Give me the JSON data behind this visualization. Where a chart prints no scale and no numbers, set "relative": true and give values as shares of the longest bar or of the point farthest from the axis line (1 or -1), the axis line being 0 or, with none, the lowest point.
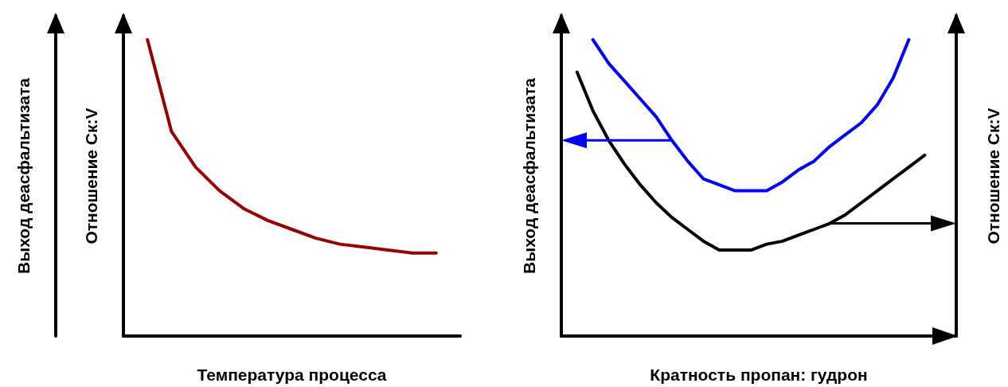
{
  "chart_data": [
    {
      "type": "line",
      "relative": true,
      "xlabel": "Температура процесса",
      "ylabel": "Отношение Ск:V",
      "y2label": "Выход деасфальтизата",
      "categories": [
        null,
        null,
        null,
        null,
        null,
        null,
        null,
        null,
        null,
        null,
        null,
        null,
        null,
        null,
        null
      ],
      "marker": "none",
      "series": [
        {
          "color": "#990000",
          "values": [
            null,
            1,
            0.69,
            0.57,
            0.49,
            0.43,
            0.39,
            0.36,
            0.33,
            0.31,
            0.3,
            0.29,
            0.28,
            0.28,
            null
          ]
        }
      ]
    },
    {
      "type": "line",
      "relative": true,
      "xlabel": "Кратность пропан: гудрон",
      "ylabel": "Выход деасфальтизата",
      "y2label": "Отношение Ск:V",
      "categories": [
        null,
        null,
        null,
        null,
        null,
        null,
        null,
        null,
        null,
        null,
        null,
        null,
        null,
        null,
        null,
        null,
        null,
        null,
        null,
        null,
        null,
        null,
        null,
        null,
        null,
        null
      ],
      "marker": "none",
      "series": [
        {
          "color": "#0000ff",
          "values": [
            null,
            null,
            1,
            0.92,
            0.86,
            0.8,
            0.74,
            0.66,
            0.59,
            0.53,
            0.51,
            0.49,
            0.49,
            0.49,
            0.52,
            0.56,
            0.59,
            0.64,
            0.68,
            0.72,
            0.78,
            0.87,
            1,
            null,
            null,
            null
          ]
        },
        {
          "color": "#000000",
          "values": [
            null,
            0.89,
            0.76,
            0.66,
            0.58,
            0.51,
            0.45,
            0.4,
            0.36,
            0.32,
            0.29,
            0.29,
            0.29,
            0.31,
            0.32,
            0.34,
            0.36,
            0.38,
            0.41,
            0.45,
            0.49,
            0.53,
            0.57,
            0.61,
            null,
            null
          ]
        }
      ]
    }
  ]
}
